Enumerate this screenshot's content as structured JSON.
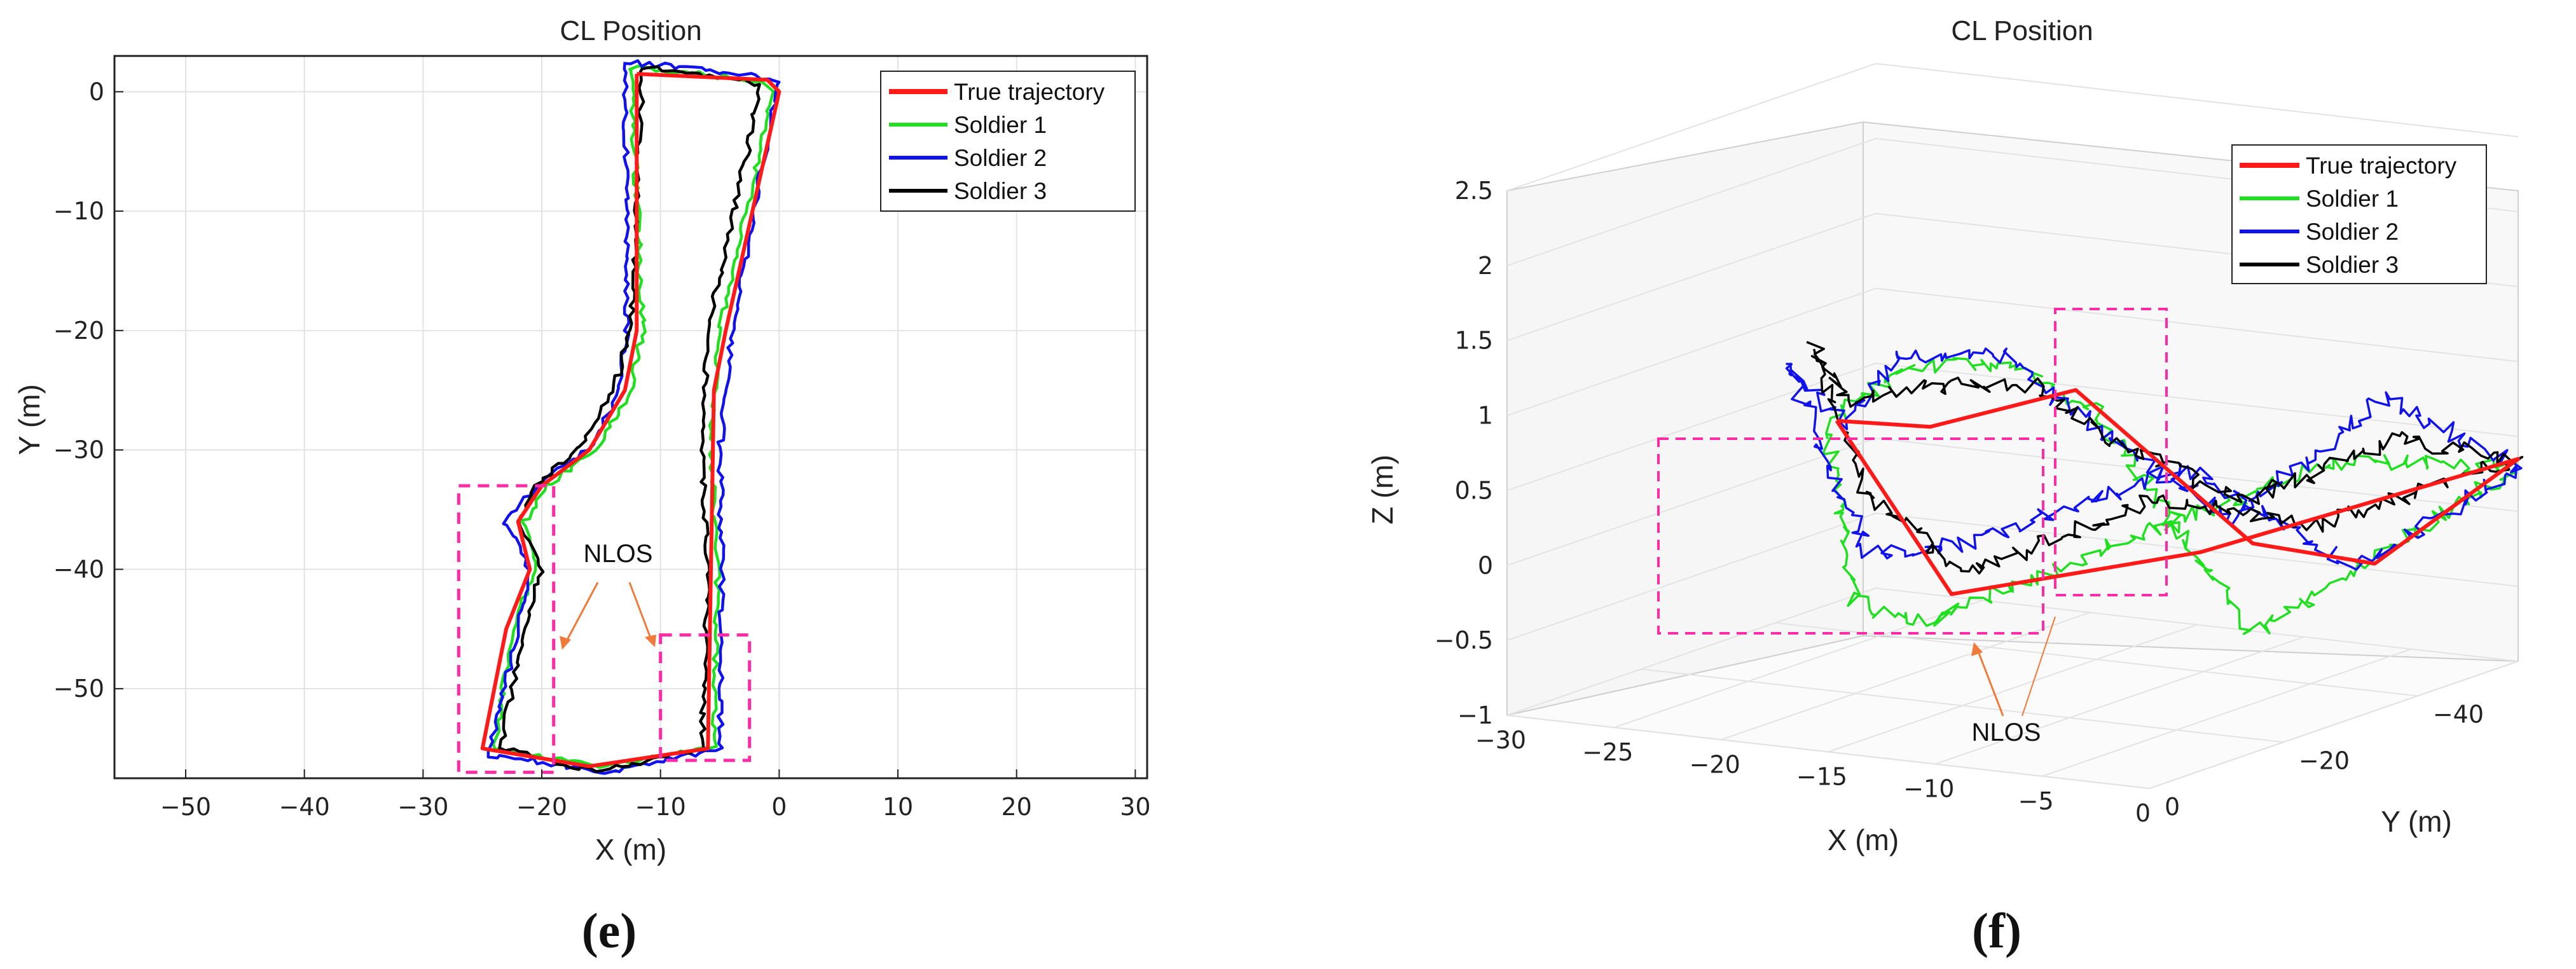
{
  "colors": {
    "true_trajectory": "#ff1a1a",
    "soldier_1": "#1fe01f",
    "soldier_2": "#1111ee",
    "soldier_3": "#000000",
    "nlos_box": "#ff2ba6",
    "nlos_arrow": "#f07a3a"
  },
  "captions": {
    "e": "(e)",
    "f": "(f)"
  },
  "chart_data": [
    {
      "panel": "e",
      "type": "line",
      "title": "CL Position",
      "xlabel": "X (m)",
      "ylabel": "Y (m)",
      "xlim": [
        -56,
        31
      ],
      "ylim": [
        -57.5,
        3
      ],
      "xticks": [
        "−50",
        "−40",
        "−30",
        "−20",
        "−10",
        "0",
        "10",
        "20",
        "30"
      ],
      "yticks": [
        "0",
        "−10",
        "−20",
        "−30",
        "−40",
        "−50"
      ],
      "grid": true,
      "legend_position": "top-right",
      "legend": [
        "True trajectory",
        "Soldier 1",
        "Soldier 2",
        "Soldier 3"
      ],
      "annotation": "NLOS",
      "nlos_regions": [
        {
          "x": [
            -27,
            -19
          ],
          "y": [
            -33,
            -57
          ]
        },
        {
          "x": [
            -10,
            -2.5
          ],
          "y": [
            -45.5,
            -56
          ]
        }
      ],
      "series": [
        {
          "name": "True trajectory",
          "points": [
            [
              -12,
              1.5
            ],
            [
              -1,
              1
            ],
            [
              0,
              0
            ],
            [
              -4.5,
              -20
            ],
            [
              -5.5,
              -25
            ],
            [
              -6,
              -55
            ],
            [
              -16,
              -56.5
            ],
            [
              -25,
              -55
            ],
            [
              -23,
              -45
            ],
            [
              -21,
              -40
            ],
            [
              -22,
              -36
            ],
            [
              -20,
              -33
            ],
            [
              -16,
              -30
            ],
            [
              -13,
              -25
            ],
            [
              -12,
              -20
            ],
            [
              -12,
              1.5
            ]
          ]
        },
        {
          "name": "Soldier 1",
          "points": [
            [
              -12.5,
              2
            ],
            [
              -2,
              1
            ],
            [
              -0.5,
              0
            ],
            [
              -5,
              -20
            ],
            [
              -5.8,
              -30
            ],
            [
              -5.2,
              -40
            ],
            [
              -5.5,
              -55
            ],
            [
              -15,
              -56.5
            ],
            [
              -24,
              -55
            ],
            [
              -22.5,
              -45
            ],
            [
              -20.5,
              -40
            ],
            [
              -21.5,
              -36
            ],
            [
              -19.5,
              -33
            ],
            [
              -15.5,
              -30
            ],
            [
              -12.5,
              -25
            ],
            [
              -11.5,
              -20
            ],
            [
              -12.5,
              2
            ]
          ]
        },
        {
          "name": "Soldier 2",
          "points": [
            [
              -13,
              2.5
            ],
            [
              -3,
              1.5
            ],
            [
              0,
              1
            ],
            [
              -4,
              -20
            ],
            [
              -5,
              -30
            ],
            [
              -4.8,
              -40
            ],
            [
              -5,
              -55
            ],
            [
              -14,
              -57
            ],
            [
              -24.5,
              -55.5
            ],
            [
              -22,
              -45
            ],
            [
              -21,
              -40
            ],
            [
              -23,
              -36
            ],
            [
              -20,
              -32.5
            ],
            [
              -16,
              -30
            ],
            [
              -13.5,
              -25
            ],
            [
              -12.8,
              -20
            ],
            [
              -13,
              2.5
            ]
          ]
        },
        {
          "name": "Soldier 3",
          "points": [
            [
              -11.5,
              2
            ],
            [
              -2.5,
              1
            ],
            [
              -1.5,
              0.5
            ],
            [
              -6,
              -20
            ],
            [
              -6.5,
              -30
            ],
            [
              -6,
              -40
            ],
            [
              -6.5,
              -55
            ],
            [
              -15.5,
              -57
            ],
            [
              -23.5,
              -55
            ],
            [
              -21.5,
              -45
            ],
            [
              -20,
              -40
            ],
            [
              -22,
              -36
            ],
            [
              -20.5,
              -33
            ],
            [
              -17,
              -30
            ],
            [
              -14,
              -25
            ],
            [
              -12.5,
              -20
            ],
            [
              -11.5,
              2
            ]
          ]
        }
      ]
    },
    {
      "panel": "f",
      "type": "line",
      "title": "CL Position",
      "xlabel": "X (m)",
      "ylabel": "Y (m)",
      "zlabel": "Z (m)",
      "xlim": [
        -30,
        0
      ],
      "ylim": [
        -55,
        0
      ],
      "zlim": [
        -1,
        2.5
      ],
      "xticks": [
        "−30",
        "−25",
        "−20",
        "−15",
        "−10",
        "−5",
        "0"
      ],
      "yticks": [
        "0",
        "−20",
        "−40"
      ],
      "zticks": [
        "2.5",
        "2",
        "1.5",
        "1",
        "0.5",
        "0",
        "−0.5",
        "−1"
      ],
      "grid": true,
      "legend_position": "top-right",
      "legend": [
        "True trajectory",
        "Soldier 1",
        "Soldier 2",
        "Soldier 3"
      ],
      "annotation": "NLOS",
      "series": [
        {
          "name": "True trajectory",
          "points": [
            [
              -24,
              -30,
              0.6
            ],
            [
              -14,
              -12,
              1.0
            ],
            [
              -5,
              -5,
              1.5
            ],
            [
              -3,
              -25,
              0.2
            ],
            [
              -2,
              -40,
              -0.15
            ],
            [
              0,
              -55,
              0.35
            ],
            [
              -7,
              -30,
              0.0
            ],
            [
              -13,
              -12,
              -0.1
            ],
            [
              -24,
              -30,
              0.6
            ]
          ]
        },
        {
          "name": "Soldier 1",
          "points": [
            [
              -26,
              -35,
              0.4
            ],
            [
              -22,
              -25,
              0.8
            ],
            [
              -15,
              -12,
              1.4
            ],
            [
              -8,
              -6,
              1.6
            ],
            [
              -5,
              -8,
              1.3
            ],
            [
              -3,
              -25,
              -0.4
            ],
            [
              -1,
              -40,
              0.0
            ],
            [
              0,
              -55,
              0.3
            ],
            [
              -4,
              -40,
              0.5
            ],
            [
              -8,
              -25,
              0.2
            ],
            [
              -14,
              -12,
              -0.3
            ],
            [
              -20,
              -20,
              -0.4
            ],
            [
              -26,
              -35,
              0.4
            ]
          ]
        },
        {
          "name": "Soldier 2",
          "points": [
            [
              -27,
              -32,
              0.9
            ],
            [
              -22,
              -25,
              0.7
            ],
            [
              -15,
              -10,
              1.5
            ],
            [
              -8,
              -4,
              1.7
            ],
            [
              -4,
              -6,
              1.2
            ],
            [
              -3,
              -22,
              0.4
            ],
            [
              -1,
              -38,
              1.0
            ],
            [
              0,
              -55,
              0.3
            ],
            [
              -3,
              -40,
              -0.2
            ],
            [
              -7,
              -28,
              0.6
            ],
            [
              -13,
              -14,
              0.2
            ],
            [
              -20,
              -22,
              -0.1
            ],
            [
              -27,
              -32,
              0.9
            ]
          ]
        },
        {
          "name": "Soldier 3",
          "points": [
            [
              -26,
              -33,
              1.0
            ],
            [
              -21,
              -22,
              0.9
            ],
            [
              -14,
              -10,
              1.3
            ],
            [
              -7,
              -5,
              1.5
            ],
            [
              -4,
              -8,
              1.1
            ],
            [
              -3,
              -24,
              0.5
            ],
            [
              -1,
              -40,
              0.7
            ],
            [
              0,
              -55,
              0.35
            ],
            [
              -4,
              -38,
              0.1
            ],
            [
              -8,
              -26,
              0.4
            ],
            [
              -13,
              -14,
              0.0
            ],
            [
              -20,
              -22,
              0.3
            ],
            [
              -26,
              -33,
              1.0
            ]
          ]
        }
      ]
    }
  ]
}
